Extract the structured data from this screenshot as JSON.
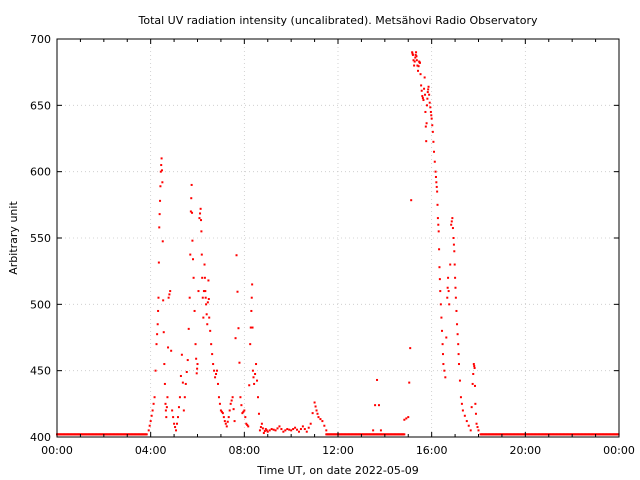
{
  "chart_data": {
    "type": "scatter",
    "title": "Total UV radiation intensity (uncalibrated). Metsähovi Radio Observatory",
    "xlabel": "Time UT, on date 2022-05-09",
    "ylabel": "Arbitrary unit",
    "xlim": [
      "00:00",
      "24:00"
    ],
    "ylim": [
      400,
      700
    ],
    "x_ticks": [
      "00:00",
      "04:00",
      "08:00",
      "12:00",
      "16:00",
      "20:00",
      "00:00"
    ],
    "y_ticks": [
      400,
      450,
      500,
      550,
      600,
      650,
      700
    ],
    "grid": true,
    "marker_color": "#ff0000",
    "baseline": 402,
    "series": [
      {
        "values": [
          [
            "03:55",
            405
          ],
          [
            "04:00",
            412
          ],
          [
            "04:05",
            420
          ],
          [
            "04:10",
            430
          ],
          [
            "04:15",
            470
          ],
          [
            "04:18",
            485
          ],
          [
            "04:20",
            505
          ],
          [
            "04:22",
            558
          ],
          [
            "04:24",
            578
          ],
          [
            "04:26",
            600
          ],
          [
            "04:28",
            610
          ],
          [
            "04:30",
            592
          ],
          [
            "04:32",
            503
          ],
          [
            "04:35",
            455
          ],
          [
            "04:38",
            425
          ],
          [
            "04:40",
            415
          ],
          [
            "04:43",
            430
          ],
          [
            "04:46",
            505
          ],
          [
            "04:50",
            510
          ],
          [
            "04:55",
            420
          ],
          [
            "05:00",
            410
          ],
          [
            "05:05",
            405
          ],
          [
            "05:10",
            415
          ],
          [
            "05:15",
            430
          ],
          [
            "05:20",
            462
          ],
          [
            "05:25",
            420
          ],
          [
            "05:30",
            440
          ],
          [
            "05:35",
            458
          ],
          [
            "05:40",
            505
          ],
          [
            "05:43",
            570
          ],
          [
            "05:45",
            590
          ],
          [
            "05:47",
            548
          ],
          [
            "05:50",
            520
          ],
          [
            "05:55",
            470
          ],
          [
            "05:58",
            448
          ],
          [
            "06:00",
            455
          ],
          [
            "06:05",
            565
          ],
          [
            "06:08",
            572
          ],
          [
            "06:10",
            555
          ],
          [
            "06:12",
            520
          ],
          [
            "06:15",
            490
          ],
          [
            "06:18",
            530
          ],
          [
            "06:20",
            510
          ],
          [
            "06:22",
            500
          ],
          [
            "06:25",
            485
          ],
          [
            "06:28",
            518
          ],
          [
            "06:30",
            490
          ],
          [
            "06:35",
            470
          ],
          [
            "06:40",
            455
          ],
          [
            "06:45",
            445
          ],
          [
            "06:50",
            450
          ],
          [
            "06:55",
            430
          ],
          [
            "07:00",
            420
          ],
          [
            "07:05",
            418
          ],
          [
            "07:10",
            412
          ],
          [
            "07:15",
            408
          ],
          [
            "07:20",
            415
          ],
          [
            "07:25",
            425
          ],
          [
            "07:30",
            430
          ],
          [
            "07:35",
            412
          ],
          [
            "07:40",
            537
          ],
          [
            "07:45",
            482
          ],
          [
            "07:50",
            430
          ],
          [
            "07:55",
            418
          ],
          [
            "08:00",
            420
          ],
          [
            "08:05",
            410
          ],
          [
            "08:10",
            408
          ],
          [
            "08:15",
            470
          ],
          [
            "08:18",
            495
          ],
          [
            "08:20",
            515
          ],
          [
            "08:22",
            450
          ],
          [
            "08:25",
            440
          ],
          [
            "08:30",
            455
          ],
          [
            "08:35",
            430
          ],
          [
            "08:40",
            405
          ],
          [
            "08:45",
            410
          ],
          [
            "08:50",
            403
          ],
          [
            "08:55",
            406
          ],
          [
            "09:00",
            404
          ],
          [
            "09:10",
            406
          ],
          [
            "09:20",
            405
          ],
          [
            "09:30",
            408
          ],
          [
            "09:40",
            404
          ],
          [
            "09:50",
            406
          ],
          [
            "10:00",
            405
          ],
          [
            "10:10",
            407
          ],
          [
            "10:20",
            404
          ],
          [
            "10:30",
            408
          ],
          [
            "10:40",
            404
          ],
          [
            "10:50",
            410
          ],
          [
            "11:00",
            426
          ],
          [
            "11:05",
            420
          ],
          [
            "11:10",
            415
          ],
          [
            "11:20",
            412
          ],
          [
            "11:30",
            405
          ],
          [
            "13:30",
            405
          ],
          [
            "13:40",
            443
          ],
          [
            "13:50",
            405
          ],
          [
            "14:50",
            413
          ],
          [
            "15:00",
            415
          ],
          [
            "15:05",
            467
          ],
          [
            "15:10",
            690
          ],
          [
            "15:12",
            688
          ],
          [
            "15:15",
            680
          ],
          [
            "15:18",
            686
          ],
          [
            "15:20",
            690
          ],
          [
            "15:22",
            684
          ],
          [
            "15:25",
            676
          ],
          [
            "15:28",
            683
          ],
          [
            "15:30",
            682
          ],
          [
            "15:33",
            665
          ],
          [
            "15:36",
            657
          ],
          [
            "15:39",
            654
          ],
          [
            "15:42",
            671
          ],
          [
            "15:44",
            645
          ],
          [
            "15:46",
            623
          ],
          [
            "15:48",
            650
          ],
          [
            "15:50",
            660
          ],
          [
            "15:52",
            664
          ],
          [
            "15:55",
            652
          ],
          [
            "15:58",
            645
          ],
          [
            "16:00",
            640
          ],
          [
            "16:03",
            630
          ],
          [
            "16:06",
            615
          ],
          [
            "16:10",
            600
          ],
          [
            "16:12",
            592
          ],
          [
            "16:14",
            585
          ],
          [
            "16:16",
            565
          ],
          [
            "16:18",
            555
          ],
          [
            "16:20",
            528
          ],
          [
            "16:22",
            510
          ],
          [
            "16:25",
            490
          ],
          [
            "16:28",
            470
          ],
          [
            "16:30",
            455
          ],
          [
            "16:35",
            445
          ],
          [
            "16:40",
            505
          ],
          [
            "16:42",
            520
          ],
          [
            "16:45",
            500
          ],
          [
            "16:50",
            560
          ],
          [
            "16:53",
            565
          ],
          [
            "16:56",
            550
          ],
          [
            "16:58",
            540
          ],
          [
            "17:00",
            520
          ],
          [
            "17:02",
            505
          ],
          [
            "17:05",
            485
          ],
          [
            "17:08",
            470
          ],
          [
            "17:10",
            455
          ],
          [
            "17:15",
            430
          ],
          [
            "17:20",
            420
          ],
          [
            "17:30",
            412
          ],
          [
            "17:40",
            405
          ],
          [
            "17:45",
            440
          ],
          [
            "17:48",
            455
          ],
          [
            "17:50",
            452
          ],
          [
            "17:52",
            425
          ],
          [
            "17:55",
            410
          ],
          [
            "18:00",
            405
          ]
        ]
      }
    ]
  }
}
